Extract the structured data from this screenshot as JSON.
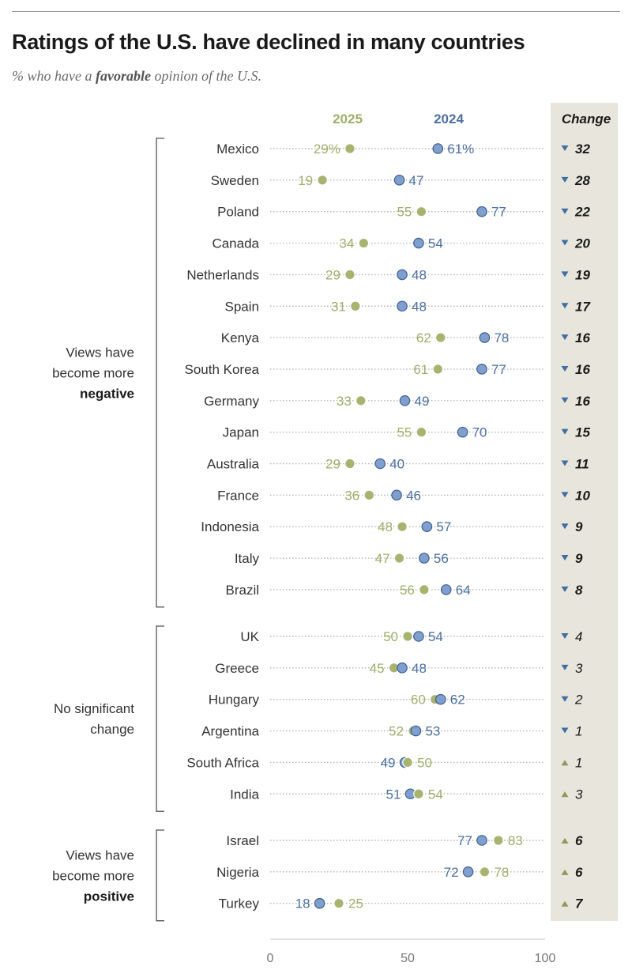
{
  "title": "Ratings of the U.S. have declined in many countries",
  "subtitle_prefix": "% who have a ",
  "subtitle_emphasis": "favorable",
  "subtitle_suffix": " opinion of the U.S.",
  "colors": {
    "y2025": "#a8b36f",
    "y2024": "#7fa0cf",
    "y2025_text": "#9fae6a",
    "y2024_text": "#4a6fa0",
    "change_bg": "#e8e6dc"
  },
  "chart_data": {
    "type": "dot",
    "series_labels": {
      "y2025": "2025",
      "y2024": "2024"
    },
    "change_header": "Change",
    "xlim": [
      0,
      100
    ],
    "ticks": [
      0,
      50,
      100
    ],
    "groups": [
      {
        "label_lines": [
          "Views have",
          "become more"
        ],
        "label_bold": "negative",
        "rows": [
          {
            "country": "Mexico",
            "y2025": 29,
            "y2024": 61,
            "y2025_label": "29%",
            "y2024_label": "61%",
            "change": "32",
            "direction": "down",
            "significant": true
          },
          {
            "country": "Sweden",
            "y2025": 19,
            "y2024": 47,
            "y2025_label": "19",
            "y2024_label": "47",
            "change": "28",
            "direction": "down",
            "significant": true
          },
          {
            "country": "Poland",
            "y2025": 55,
            "y2024": 77,
            "y2025_label": "55",
            "y2024_label": "77",
            "change": "22",
            "direction": "down",
            "significant": true
          },
          {
            "country": "Canada",
            "y2025": 34,
            "y2024": 54,
            "y2025_label": "34",
            "y2024_label": "54",
            "change": "20",
            "direction": "down",
            "significant": true
          },
          {
            "country": "Netherlands",
            "y2025": 29,
            "y2024": 48,
            "y2025_label": "29",
            "y2024_label": "48",
            "change": "19",
            "direction": "down",
            "significant": true
          },
          {
            "country": "Spain",
            "y2025": 31,
            "y2024": 48,
            "y2025_label": "31",
            "y2024_label": "48",
            "change": "17",
            "direction": "down",
            "significant": true
          },
          {
            "country": "Kenya",
            "y2025": 62,
            "y2024": 78,
            "y2025_label": "62",
            "y2024_label": "78",
            "change": "16",
            "direction": "down",
            "significant": true
          },
          {
            "country": "South Korea",
            "y2025": 61,
            "y2024": 77,
            "y2025_label": "61",
            "y2024_label": "77",
            "change": "16",
            "direction": "down",
            "significant": true
          },
          {
            "country": "Germany",
            "y2025": 33,
            "y2024": 49,
            "y2025_label": "33",
            "y2024_label": "49",
            "change": "16",
            "direction": "down",
            "significant": true
          },
          {
            "country": "Japan",
            "y2025": 55,
            "y2024": 70,
            "y2025_label": "55",
            "y2024_label": "70",
            "change": "15",
            "direction": "down",
            "significant": true
          },
          {
            "country": "Australia",
            "y2025": 29,
            "y2024": 40,
            "y2025_label": "29",
            "y2024_label": "40",
            "change": "11",
            "direction": "down",
            "significant": true
          },
          {
            "country": "France",
            "y2025": 36,
            "y2024": 46,
            "y2025_label": "36",
            "y2024_label": "46",
            "change": "10",
            "direction": "down",
            "significant": true
          },
          {
            "country": "Indonesia",
            "y2025": 48,
            "y2024": 57,
            "y2025_label": "48",
            "y2024_label": "57",
            "change": "9",
            "direction": "down",
            "significant": true
          },
          {
            "country": "Italy",
            "y2025": 47,
            "y2024": 56,
            "y2025_label": "47",
            "y2024_label": "56",
            "change": "9",
            "direction": "down",
            "significant": true
          },
          {
            "country": "Brazil",
            "y2025": 56,
            "y2024": 64,
            "y2025_label": "56",
            "y2024_label": "64",
            "change": "8",
            "direction": "down",
            "significant": true
          }
        ]
      },
      {
        "label_lines": [
          "No significant",
          "change"
        ],
        "label_bold": "",
        "rows": [
          {
            "country": "UK",
            "y2025": 50,
            "y2024": 54,
            "y2025_label": "50",
            "y2024_label": "54",
            "change": "4",
            "direction": "down",
            "significant": false
          },
          {
            "country": "Greece",
            "y2025": 45,
            "y2024": 48,
            "y2025_label": "45",
            "y2024_label": "48",
            "change": "3",
            "direction": "down",
            "significant": false
          },
          {
            "country": "Hungary",
            "y2025": 60,
            "y2024": 62,
            "y2025_label": "60",
            "y2024_label": "62",
            "change": "2",
            "direction": "down",
            "significant": false
          },
          {
            "country": "Argentina",
            "y2025": 52,
            "y2024": 53,
            "y2025_label": "52",
            "y2024_label": "53",
            "change": "1",
            "direction": "down",
            "significant": false
          },
          {
            "country": "South Africa",
            "y2025": 50,
            "y2024": 49,
            "y2025_label": "50",
            "y2024_label": "49",
            "change": "1",
            "direction": "up",
            "significant": false
          },
          {
            "country": "India",
            "y2025": 54,
            "y2024": 51,
            "y2025_label": "54",
            "y2024_label": "51",
            "change": "3",
            "direction": "up",
            "significant": false
          }
        ]
      },
      {
        "label_lines": [
          "Views have",
          "become more"
        ],
        "label_bold": "positive",
        "rows": [
          {
            "country": "Israel",
            "y2025": 83,
            "y2024": 77,
            "y2025_label": "83",
            "y2024_label": "77",
            "change": "6",
            "direction": "up",
            "significant": true
          },
          {
            "country": "Nigeria",
            "y2025": 78,
            "y2024": 72,
            "y2025_label": "78",
            "y2024_label": "72",
            "change": "6",
            "direction": "up",
            "significant": true
          },
          {
            "country": "Turkey",
            "y2025": 25,
            "y2024": 18,
            "y2025_label": "25",
            "y2024_label": "18",
            "change": "7",
            "direction": "up",
            "significant": true
          }
        ]
      }
    ]
  }
}
